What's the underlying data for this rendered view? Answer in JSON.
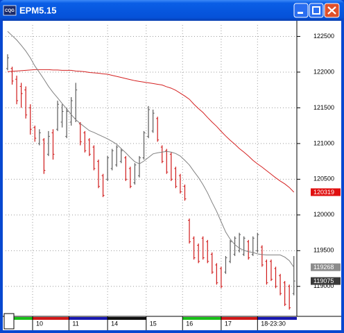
{
  "chart_data": {
    "type": "ohlc",
    "title": "EPM5.15",
    "up_color": "#5a5a5a",
    "down_color": "#d01818",
    "open": [
      122050,
      122050,
      121900,
      121800,
      121750,
      121500,
      121225,
      121000,
      121050,
      120850,
      121150,
      121200,
      121300,
      121100,
      121300,
      121350,
      121275,
      121150,
      121050,
      120950,
      120750,
      120550,
      120500,
      120650,
      120700,
      120750,
      120800,
      120650,
      120450,
      120550,
      120800,
      121100,
      121175,
      121350,
      120950,
      120900,
      120850,
      120650,
      120550,
      120400,
      119925,
      119675,
      119575,
      119675,
      119625,
      119450,
      119300,
      119250,
      119200,
      119350,
      119450,
      119500,
      119450,
      119625,
      119450,
      119500,
      119550,
      119350,
      119350,
      119250,
      119150,
      119050,
      119000,
      118900
    ],
    "high": [
      122250,
      122075,
      121950,
      121850,
      121800,
      121550,
      121250,
      121200,
      121075,
      121175,
      121200,
      121600,
      121550,
      121500,
      121650,
      121850,
      121300,
      121175,
      121075,
      120975,
      120775,
      120575,
      120825,
      120925,
      120975,
      120925,
      120825,
      120675,
      120725,
      120825,
      121175,
      121525,
      121475,
      121375,
      120975,
      120925,
      120875,
      120675,
      120575,
      120425,
      119950,
      119700,
      119600,
      119700,
      119650,
      119475,
      119325,
      119275,
      119425,
      119650,
      119700,
      119750,
      119700,
      119650,
      119700,
      119750,
      119575,
      119375,
      119375,
      119275,
      119175,
      119075,
      119025,
      119425
    ],
    "low": [
      122025,
      121825,
      121550,
      121500,
      121350,
      121125,
      121025,
      120975,
      120575,
      120825,
      120775,
      121175,
      121225,
      121075,
      121250,
      121300,
      120975,
      120875,
      120825,
      120625,
      120375,
      120250,
      120475,
      120625,
      120675,
      120725,
      120475,
      120375,
      120425,
      120525,
      120775,
      121075,
      121150,
      121025,
      120725,
      120575,
      120475,
      120375,
      120300,
      120200,
      119600,
      119375,
      119325,
      119375,
      119325,
      119175,
      119025,
      118975,
      119175,
      119325,
      119425,
      119475,
      119425,
      119375,
      119425,
      119475,
      119275,
      119025,
      119075,
      118975,
      118875,
      118725,
      118675,
      118875
    ],
    "close": [
      122200,
      121875,
      121600,
      121700,
      121400,
      121200,
      121075,
      121150,
      120625,
      121100,
      120850,
      121550,
      121450,
      121450,
      121600,
      121750,
      121025,
      120900,
      120850,
      120650,
      120400,
      120275,
      120800,
      120900,
      120950,
      120900,
      120500,
      120400,
      120700,
      120800,
      121150,
      121475,
      121425,
      121050,
      120750,
      120600,
      120500,
      120400,
      120325,
      120225,
      119625,
      119400,
      119350,
      119400,
      119350,
      119200,
      119050,
      119000,
      119400,
      119625,
      119675,
      119725,
      119675,
      119400,
      119675,
      119725,
      119300,
      119050,
      119100,
      119000,
      118900,
      118750,
      118700,
      119075
    ],
    "close_label_color": "#3a3a3a",
    "lines": [
      {
        "color": "#d42020",
        "label_color": "#e01010",
        "end_value": 120319,
        "values": [
          122005,
          122011,
          122015,
          122020,
          122025,
          122030,
          122035,
          122035,
          122035,
          122035,
          122030,
          122030,
          122025,
          122025,
          122025,
          122015,
          122011,
          122005,
          121995,
          121990,
          121985,
          121975,
          121970,
          121955,
          121940,
          121925,
          121910,
          121895,
          121880,
          121870,
          121860,
          121850,
          121840,
          121830,
          121820,
          121795,
          121775,
          121745,
          121705,
          121665,
          121620,
          121550,
          121490,
          121435,
          121365,
          121300,
          121240,
          121170,
          121105,
          121045,
          120990,
          120930,
          120880,
          120825,
          120765,
          120715,
          120670,
          120620,
          120570,
          120520,
          120475,
          120435,
          120385,
          120319
        ]
      },
      {
        "color": "#808080",
        "label_color": "#8c8c8c",
        "end_value": 119268,
        "values": [
          122570,
          122510,
          122450,
          122375,
          122295,
          122200,
          122085,
          121995,
          121900,
          121800,
          121715,
          121640,
          121560,
          121485,
          121405,
          121335,
          121280,
          121230,
          121180,
          121155,
          121125,
          121095,
          121065,
          121030,
          120990,
          120930,
          120870,
          120805,
          120745,
          120715,
          120755,
          120805,
          120855,
          120870,
          120880,
          120890,
          120880,
          120860,
          120825,
          120765,
          120700,
          120610,
          120525,
          120425,
          120310,
          120175,
          120050,
          119905,
          119760,
          119660,
          119585,
          119535,
          119505,
          119485,
          119475,
          119455,
          119445,
          119440,
          119440,
          119440,
          119440,
          119410,
          119360,
          119268
        ]
      }
    ],
    "xlim": [
      -0.5,
      63.5
    ],
    "xticks": [
      {
        "value": 5.5,
        "label": "10"
      },
      {
        "value": 13.5,
        "label": "11"
      },
      {
        "value": 22,
        "label": "14"
      },
      {
        "value": 30.5,
        "label": "15"
      },
      {
        "value": 38.5,
        "label": "16"
      },
      {
        "value": 47,
        "label": "17"
      },
      {
        "value": 55,
        "label": "18-23:30"
      }
    ],
    "ylim": [
      118590,
      122660
    ],
    "yticks": [
      122500,
      122000,
      121500,
      121000,
      120500,
      120000,
      119500,
      119000
    ],
    "grid": true
  }
}
